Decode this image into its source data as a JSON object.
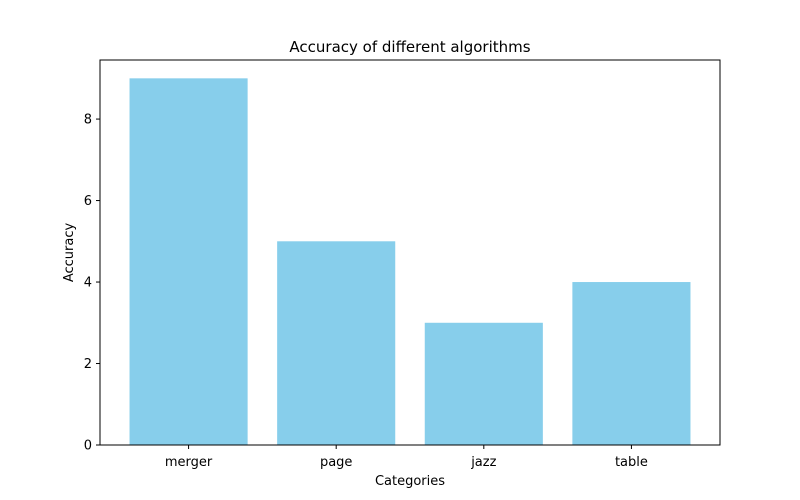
{
  "chart_data": {
    "type": "bar",
    "title": "Accuracy of different algorithms",
    "xlabel": "Categories",
    "ylabel": "Accuracy",
    "categories": [
      "merger",
      "page",
      "jazz",
      "table"
    ],
    "values": [
      9,
      5,
      3,
      4
    ],
    "ylim": [
      0,
      9.45
    ],
    "yticks": [
      0,
      2,
      4,
      6,
      8
    ],
    "bar_color": "#87CEEB",
    "grid": false,
    "legend": "none"
  }
}
